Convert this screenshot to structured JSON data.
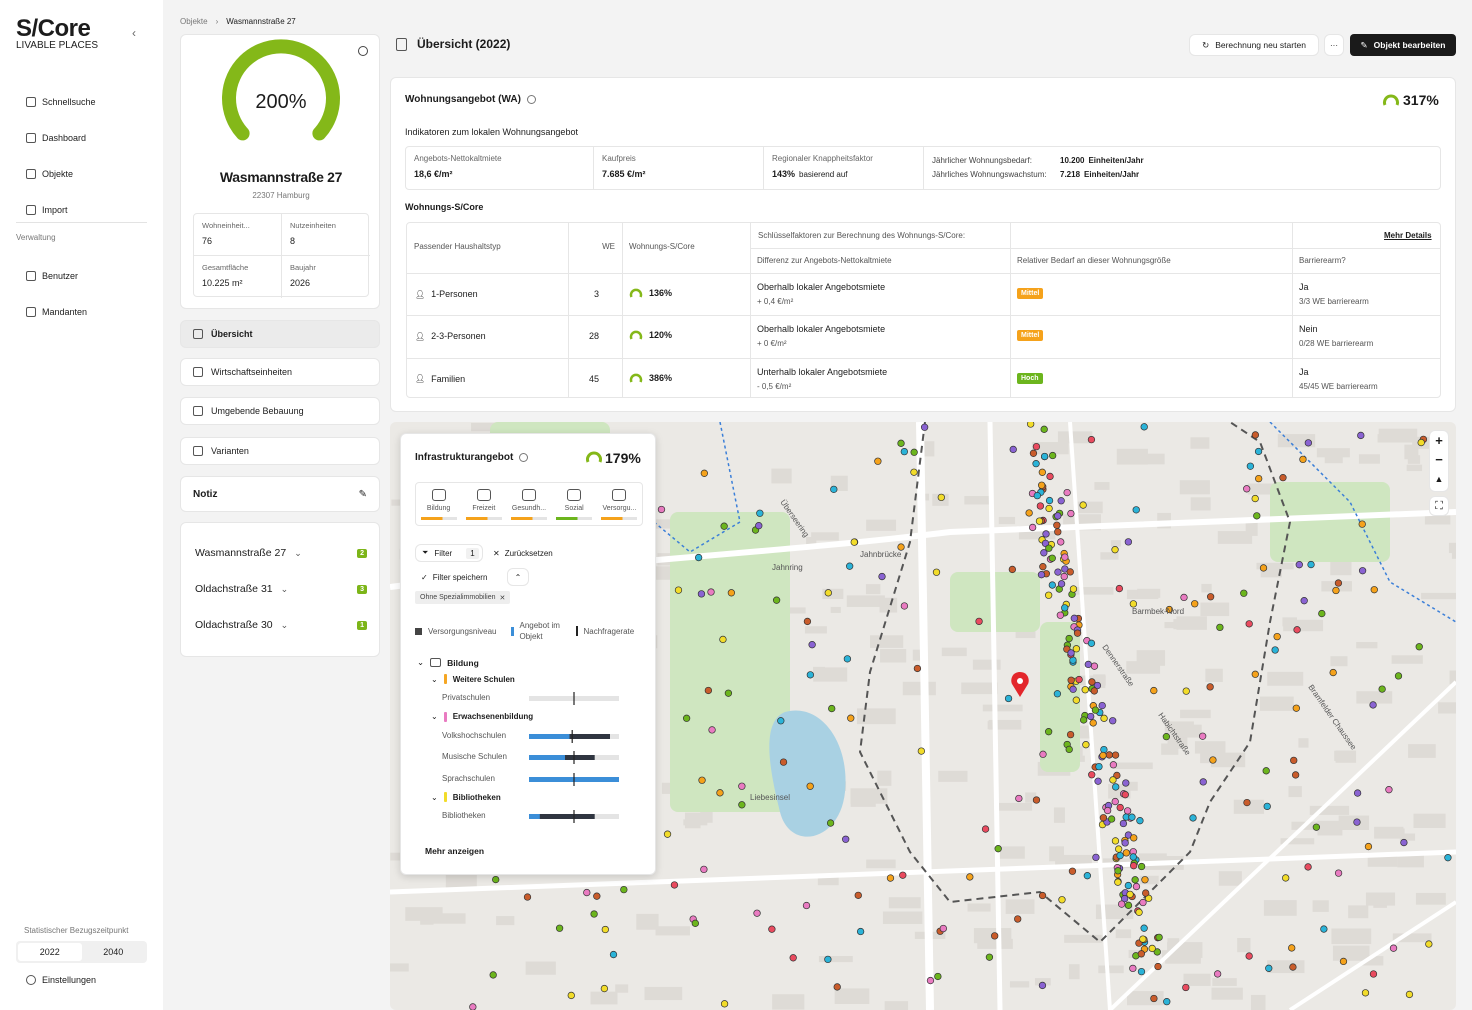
{
  "sidebar": {
    "brand": "S/Core",
    "brand_sub": "LIVABLE PLACES",
    "nav": [
      "Schnellsuche",
      "Dashboard",
      "Objekte",
      "Import"
    ],
    "section": "Verwaltung",
    "admin": [
      "Benutzer",
      "Mandanten"
    ],
    "period_label": "Statistischer Bezugszeitpunkt",
    "periods": [
      "2022",
      "2040"
    ],
    "settings": "Einstellungen"
  },
  "breadcrumb": [
    "Objekte",
    "Wasmannstraße 27"
  ],
  "object": {
    "score": "200%",
    "name": "Wasmannstraße 27",
    "address": "22307 Hamburg",
    "facts": [
      {
        "label": "Wohneinheit...",
        "value": "76"
      },
      {
        "label": "Nutzeinheiten",
        "value": "8"
      },
      {
        "label": "Gesamtfläche",
        "value": "10.225 m²"
      },
      {
        "label": "Baujahr",
        "value": "2026"
      }
    ]
  },
  "tabs": [
    "Übersicht",
    "Wirtschaftseinheiten",
    "Umgebende Bebauung",
    "Varianten"
  ],
  "note": "Notiz",
  "related": [
    {
      "name": "Wasmannstraße 27",
      "count": 2
    },
    {
      "name": "Oldachstraße 31",
      "count": 3
    },
    {
      "name": "Oldachstraße 30",
      "count": 1
    }
  ],
  "header": {
    "title": "Übersicht (2022)",
    "recalc": "Berechnung neu starten",
    "more": "···",
    "edit": "Objekt bearbeiten"
  },
  "supply": {
    "title": "Wohnungsangebot (WA)",
    "score": "317%",
    "indicators_title": "Indikatoren zum lokalen Wohnungsangebot",
    "indicators": [
      {
        "label": "Angebots-Nettokaltmiete",
        "value": "18,6 €/m²"
      },
      {
        "label": "Kaufpreis",
        "value": "7.685 €/m²"
      },
      {
        "label": "Regionaler Knappheitsfaktor",
        "value": "143%",
        "note": "basierend auf"
      }
    ],
    "demand": [
      {
        "label": "Jährlicher Wohnungsbedarf:",
        "value": "10.200",
        "unit": "Einheiten/Jahr"
      },
      {
        "label": "Jährliches Wohnungswachstum:",
        "value": "7.218",
        "unit": "Einheiten/Jahr"
      }
    ]
  },
  "score_table": {
    "title": "Wohnungs-S/Core",
    "columns": [
      "Passender Haushaltstyp",
      "WE",
      "Wohnungs-S/Core"
    ],
    "factors_title": "Schlüsselfaktoren zur Berechnung des Wohnungs-S/Core:",
    "more": "Mehr Details",
    "factor_columns": [
      "Differenz zur Angebots-Nettokaltmiete",
      "Relativer Bedarf an dieser Wohnungsgröße",
      "Barrierearm?"
    ],
    "rows": [
      {
        "type": "1-Personen",
        "we": 3,
        "score": "136%",
        "rent": "Oberhalb lokaler Angebotsmiete",
        "rent_diff": "+ 0,4 €/m²",
        "need": "Mittel",
        "barrier": "Ja",
        "barrier_detail": "3/3 WE barrierearm"
      },
      {
        "type": "2-3-Personen",
        "we": 28,
        "score": "120%",
        "rent": "Oberhalb lokaler Angebotsmiete",
        "rent_diff": "+ 0 €/m²",
        "need": "Mittel",
        "barrier": "Nein",
        "barrier_detail": "0/28 WE barrierearm"
      },
      {
        "type": "Familien",
        "we": 45,
        "score": "386%",
        "rent": "Unterhalb lokaler Angebotsmiete",
        "rent_diff": "- 0,5 €/m²",
        "need": "Hoch",
        "barrier": "Ja",
        "barrier_detail": "45/45 WE barrierearm"
      }
    ]
  },
  "infra": {
    "title": "Infrastrukturangebot",
    "score": "179%",
    "categories": [
      "Bildung",
      "Freizeit",
      "Gesundh...",
      "Sozial",
      "Versorgu..."
    ],
    "filter": "Filter",
    "filter_count": 1,
    "reset": "Zurücksetzen",
    "save": "Filter speichern",
    "chip": "Ohne Spezialimmobilien",
    "legend": [
      "Versorgungsniveau",
      "Angebot im Objekt",
      "Nachfragerate"
    ],
    "group": "Bildung",
    "bar_range": [
      0,
      100
    ],
    "subgroups": [
      {
        "name": "Weitere Schulen",
        "color": "#f5a623",
        "items": [
          {
            "name": "Privatschulen",
            "level": 0,
            "total": 0,
            "demand": 50
          }
        ]
      },
      {
        "name": "Erwachsenenbildung",
        "color": "#e97bc1",
        "items": [
          {
            "name": "Volkshochschulen",
            "level": 45,
            "total": 90,
            "demand": 48
          },
          {
            "name": "Musische Schulen",
            "level": 40,
            "total": 73,
            "demand": 50
          },
          {
            "name": "Sprachschulen",
            "level": 100,
            "total": 100,
            "demand": 50
          }
        ]
      },
      {
        "name": "Bibliotheken",
        "color": "#f2dc2a",
        "items": [
          {
            "name": "Bibliotheken",
            "level": 12,
            "total": 73,
            "demand": 50
          }
        ]
      }
    ],
    "more": "Mehr anzeigen"
  },
  "map": {
    "labels": [
      "Barmbek-Nord",
      "Jahnring",
      "Jahnbrücke",
      "Liebesinsel",
      "Dennerstraße",
      "Habichtstraße",
      "Bramfelder Chaussee",
      "Überseering"
    ]
  }
}
